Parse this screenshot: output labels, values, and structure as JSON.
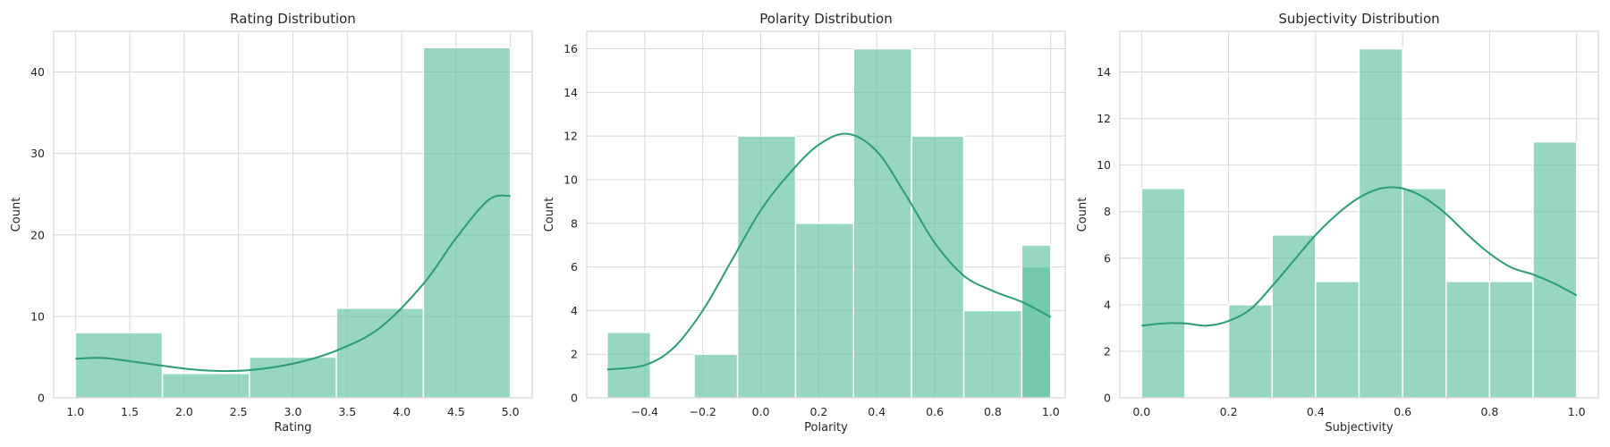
{
  "chart_data": [
    {
      "type": "bar",
      "title": "Rating Distribution",
      "xlabel": "Rating",
      "ylabel": "Count",
      "xlim": [
        0.8,
        5.2
      ],
      "ylim": [
        0,
        45
      ],
      "xticks": [
        1.0,
        1.5,
        2.0,
        2.5,
        3.0,
        3.5,
        4.0,
        4.5,
        5.0
      ],
      "xtick_labels": [
        "1.0",
        "1.5",
        "2.0",
        "2.5",
        "3.0",
        "3.5",
        "4.0",
        "4.5",
        "5.0"
      ],
      "yticks": [
        0,
        10,
        20,
        30,
        40
      ],
      "ytick_labels": [
        "0",
        "10",
        "20",
        "30",
        "40"
      ],
      "bins": [
        {
          "x0": 1.0,
          "x1": 1.8,
          "count": 8
        },
        {
          "x0": 1.8,
          "x1": 2.6,
          "count": 3
        },
        {
          "x0": 2.6,
          "x1": 3.4,
          "count": 5
        },
        {
          "x0": 3.4,
          "x1": 4.2,
          "count": 11
        },
        {
          "x0": 4.2,
          "x1": 5.0,
          "count": 43
        }
      ],
      "kde": [
        [
          1.0,
          4.8
        ],
        [
          1.25,
          4.9
        ],
        [
          1.5,
          4.5
        ],
        [
          2.0,
          3.6
        ],
        [
          2.3,
          3.3
        ],
        [
          2.6,
          3.4
        ],
        [
          3.0,
          4.2
        ],
        [
          3.4,
          5.8
        ],
        [
          3.8,
          8.6
        ],
        [
          4.2,
          14.0
        ],
        [
          4.5,
          19.6
        ],
        [
          4.8,
          24.3
        ],
        [
          5.0,
          24.8
        ]
      ],
      "grid": true,
      "bar_color": "#66c2a5",
      "line_color": "#2a9d74"
    },
    {
      "type": "bar",
      "title": "Polarity Distribution",
      "xlabel": "Polarity",
      "ylabel": "Count",
      "xlim": [
        -0.6,
        1.05
      ],
      "ylim": [
        0,
        16.8
      ],
      "xticks": [
        -0.4,
        -0.2,
        0.0,
        0.2,
        0.4,
        0.6,
        0.8,
        1.0
      ],
      "xtick_labels": [
        "−0.4",
        "−0.2",
        "0.0",
        "0.2",
        "0.4",
        "0.6",
        "0.8",
        "1.0"
      ],
      "yticks": [
        0,
        2,
        4,
        6,
        8,
        10,
        12,
        14,
        16
      ],
      "ytick_labels": [
        "0",
        "2",
        "4",
        "6",
        "8",
        "10",
        "12",
        "14",
        "16"
      ],
      "bins": [
        {
          "x0": -0.53,
          "x1": -0.38,
          "count": 3
        },
        {
          "x0": -0.38,
          "x1": -0.23,
          "count": 0
        },
        {
          "x0": -0.23,
          "x1": -0.08,
          "count": 2
        },
        {
          "x0": -0.08,
          "x1": 0.12,
          "count": 12
        },
        {
          "x0": 0.12,
          "x1": 0.32,
          "count": 8
        },
        {
          "x0": 0.32,
          "x1": 0.52,
          "count": 16
        },
        {
          "x0": 0.52,
          "x1": 0.7,
          "count": 12
        },
        {
          "x0": 0.7,
          "x1": 0.9,
          "count": 4
        },
        {
          "x0": 0.9,
          "x1": 1.0,
          "count": 6
        },
        {
          "x0": 1.0,
          "x1": 1.0,
          "count": 7
        }
      ],
      "kde": [
        [
          -0.53,
          1.3
        ],
        [
          -0.4,
          1.5
        ],
        [
          -0.3,
          2.3
        ],
        [
          -0.2,
          4.0
        ],
        [
          -0.1,
          6.3
        ],
        [
          0.0,
          8.6
        ],
        [
          0.1,
          10.3
        ],
        [
          0.2,
          11.6
        ],
        [
          0.3,
          12.1
        ],
        [
          0.4,
          11.3
        ],
        [
          0.5,
          9.3
        ],
        [
          0.6,
          7.1
        ],
        [
          0.7,
          5.6
        ],
        [
          0.8,
          4.9
        ],
        [
          0.9,
          4.4
        ],
        [
          1.0,
          3.7
        ]
      ],
      "grid": true,
      "bar_color": "#66c2a5",
      "line_color": "#2a9d74"
    },
    {
      "type": "bar",
      "title": "Subjectivity Distribution",
      "xlabel": "Subjectivity",
      "ylabel": "Count",
      "xlim": [
        -0.05,
        1.05
      ],
      "ylim": [
        0,
        15.75
      ],
      "xticks": [
        0.0,
        0.2,
        0.4,
        0.6,
        0.8,
        1.0
      ],
      "xtick_labels": [
        "0.0",
        "0.2",
        "0.4",
        "0.6",
        "0.8",
        "1.0"
      ],
      "yticks": [
        0,
        2,
        4,
        6,
        8,
        10,
        12,
        14
      ],
      "ytick_labels": [
        "0",
        "2",
        "4",
        "6",
        "8",
        "10",
        "12",
        "14"
      ],
      "bins": [
        {
          "x0": 0.0,
          "x1": 0.1,
          "count": 9
        },
        {
          "x0": 0.1,
          "x1": 0.2,
          "count": 0
        },
        {
          "x0": 0.2,
          "x1": 0.3,
          "count": 4
        },
        {
          "x0": 0.3,
          "x1": 0.4,
          "count": 7
        },
        {
          "x0": 0.4,
          "x1": 0.5,
          "count": 5
        },
        {
          "x0": 0.5,
          "x1": 0.6,
          "count": 15
        },
        {
          "x0": 0.6,
          "x1": 0.7,
          "count": 9
        },
        {
          "x0": 0.7,
          "x1": 0.8,
          "count": 5
        },
        {
          "x0": 0.8,
          "x1": 0.9,
          "count": 5
        },
        {
          "x0": 0.9,
          "x1": 1.0,
          "count": 11
        }
      ],
      "kde": [
        [
          0.0,
          3.1
        ],
        [
          0.05,
          3.2
        ],
        [
          0.1,
          3.2
        ],
        [
          0.15,
          3.1
        ],
        [
          0.2,
          3.3
        ],
        [
          0.25,
          3.8
        ],
        [
          0.3,
          4.8
        ],
        [
          0.35,
          5.9
        ],
        [
          0.4,
          7.0
        ],
        [
          0.45,
          7.9
        ],
        [
          0.5,
          8.6
        ],
        [
          0.55,
          9.0
        ],
        [
          0.6,
          9.0
        ],
        [
          0.65,
          8.6
        ],
        [
          0.7,
          7.9
        ],
        [
          0.75,
          7.0
        ],
        [
          0.8,
          6.2
        ],
        [
          0.85,
          5.6
        ],
        [
          0.9,
          5.3
        ],
        [
          0.95,
          4.9
        ],
        [
          1.0,
          4.4
        ]
      ],
      "grid": true,
      "bar_color": "#66c2a5",
      "line_color": "#2a9d74"
    }
  ]
}
